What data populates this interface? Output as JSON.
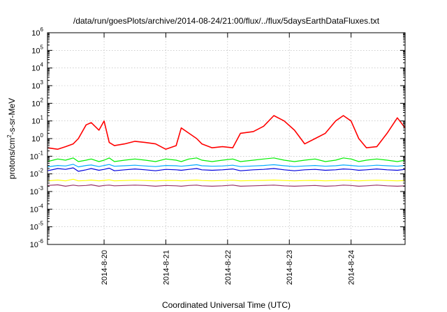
{
  "chart_data": {
    "type": "line",
    "title": "/data/run/goesPlots/archive/2014-08-24/21:00/flux/../flux/5daysEarthDataFluxes.txt",
    "xlabel": "Coordinated Universal Time (UTC)",
    "ylabel": {
      "prefix": "protons/cm",
      "superscript": "2",
      "suffix": "-s-sr-MeV"
    },
    "yscale": "log",
    "ylim": [
      1e-06,
      1000000.0
    ],
    "xlim": [
      "2014-08-19T02:00",
      "2014-08-24T21:00"
    ],
    "grid": true,
    "x_ticks": [
      {
        "label": "2014-8-20",
        "value": "2014-08-20T00:00"
      },
      {
        "label": "2014-8-21",
        "value": "2014-08-21T00:00"
      },
      {
        "label": "2014-8-22",
        "value": "2014-08-22T00:00"
      },
      {
        "label": "2014-8-23",
        "value": "2014-08-23T00:00"
      },
      {
        "label": "2014-8-24",
        "value": "2014-08-24T00:00"
      }
    ],
    "y_ticks": [
      {
        "base": "10",
        "exp": "-6"
      },
      {
        "base": "10",
        "exp": "-5"
      },
      {
        "base": "10",
        "exp": "-4"
      },
      {
        "base": "10",
        "exp": "-3"
      },
      {
        "base": "10",
        "exp": "-2"
      },
      {
        "base": "10",
        "exp": "-1"
      },
      {
        "base": "10",
        "exp": "0"
      },
      {
        "base": "10",
        "exp": "1"
      },
      {
        "base": "10",
        "exp": "2"
      },
      {
        "base": "10",
        "exp": "3"
      },
      {
        "base": "10",
        "exp": "4"
      },
      {
        "base": "10",
        "exp": "5"
      },
      {
        "base": "10",
        "exp": "6"
      }
    ],
    "series": [
      {
        "color": "#ff0000",
        "x": [
          "2014-08-19T02:00",
          "2014-08-19T06:00",
          "2014-08-19T09:00",
          "2014-08-19T12:00",
          "2014-08-19T14:00",
          "2014-08-19T17:00",
          "2014-08-19T19:00",
          "2014-08-19T22:00",
          "2014-08-20T00:00",
          "2014-08-20T02:00",
          "2014-08-20T04:00",
          "2014-08-20T08:00",
          "2014-08-20T12:00",
          "2014-08-20T16:00",
          "2014-08-20T20:00",
          "2014-08-21T00:00",
          "2014-08-21T04:00",
          "2014-08-21T06:00",
          "2014-08-21T09:00",
          "2014-08-21T12:00",
          "2014-08-21T14:00",
          "2014-08-21T18:00",
          "2014-08-21T22:00",
          "2014-08-22T02:00",
          "2014-08-22T05:00",
          "2014-08-22T10:00",
          "2014-08-22T14:00",
          "2014-08-22T18:00",
          "2014-08-22T22:00",
          "2014-08-23T02:00",
          "2014-08-23T06:00",
          "2014-08-23T10:00",
          "2014-08-23T14:00",
          "2014-08-23T18:00",
          "2014-08-23T21:00",
          "2014-08-24T00:00",
          "2014-08-24T03:00",
          "2014-08-24T06:00",
          "2014-08-24T10:00",
          "2014-08-24T14:00",
          "2014-08-24T18:00",
          "2014-08-24T21:00"
        ],
        "values": [
          0.3,
          0.25,
          0.35,
          0.5,
          1.0,
          6.0,
          8.0,
          3.0,
          10.0,
          0.6,
          0.4,
          0.5,
          0.7,
          0.6,
          0.5,
          0.25,
          0.4,
          4.0,
          2.0,
          1.0,
          0.5,
          0.3,
          0.35,
          0.3,
          2.0,
          2.5,
          5.0,
          20.0,
          10.0,
          3.0,
          0.5,
          1.0,
          2.0,
          10.0,
          20.0,
          10.0,
          1.0,
          0.3,
          0.35,
          2.0,
          15.0,
          4.0
        ]
      },
      {
        "color": "#00ee00",
        "values": [
          0.05,
          0.07,
          0.06,
          0.08,
          0.05,
          0.06,
          0.07,
          0.05,
          0.06,
          0.08,
          0.05,
          0.06,
          0.07,
          0.06,
          0.05,
          0.07,
          0.06,
          0.05,
          0.07,
          0.08,
          0.06,
          0.05,
          0.06,
          0.07,
          0.05,
          0.06,
          0.07,
          0.08,
          0.06,
          0.05,
          0.06,
          0.07,
          0.05,
          0.06,
          0.08,
          0.07,
          0.05,
          0.06,
          0.07,
          0.06,
          0.05,
          0.06
        ]
      },
      {
        "color": "#00aaff",
        "values": [
          0.025,
          0.03,
          0.028,
          0.035,
          0.025,
          0.03,
          0.032,
          0.026,
          0.03,
          0.034,
          0.027,
          0.029,
          0.031,
          0.028,
          0.026,
          0.03,
          0.029,
          0.027,
          0.03,
          0.033,
          0.029,
          0.027,
          0.028,
          0.031,
          0.026,
          0.028,
          0.03,
          0.033,
          0.029,
          0.026,
          0.028,
          0.03,
          0.027,
          0.029,
          0.032,
          0.03,
          0.027,
          0.028,
          0.031,
          0.029,
          0.027,
          0.03
        ]
      },
      {
        "color": "#0000dd",
        "values": [
          0.015,
          0.02,
          0.018,
          0.022,
          0.014,
          0.017,
          0.02,
          0.016,
          0.018,
          0.021,
          0.015,
          0.017,
          0.019,
          0.017,
          0.015,
          0.018,
          0.017,
          0.016,
          0.018,
          0.02,
          0.017,
          0.016,
          0.017,
          0.019,
          0.015,
          0.017,
          0.018,
          0.02,
          0.017,
          0.015,
          0.017,
          0.018,
          0.016,
          0.017,
          0.019,
          0.018,
          0.016,
          0.017,
          0.019,
          0.017,
          0.016,
          0.018
        ]
      },
      {
        "color": "#ffff00",
        "values": [
          0.004,
          0.0045,
          0.004,
          0.005,
          0.004,
          0.0042,
          0.0045,
          0.004,
          0.0043,
          0.0046,
          0.004,
          0.0042,
          0.0044,
          0.0042,
          0.004,
          0.0043,
          0.0042,
          0.004,
          0.0043,
          0.0045,
          0.0042,
          0.004,
          0.0042,
          0.0044,
          0.004,
          0.0042,
          0.0043,
          0.0045,
          0.0042,
          0.004,
          0.0042,
          0.0043,
          0.004,
          0.0042,
          0.0044,
          0.0043,
          0.004,
          0.0042,
          0.0044,
          0.0042,
          0.004,
          0.0042
        ]
      },
      {
        "color": "#993366",
        "values": [
          0.0022,
          0.0024,
          0.002,
          0.0023,
          0.0021,
          0.0022,
          0.0024,
          0.002,
          0.0022,
          0.0023,
          0.0021,
          0.0022,
          0.0023,
          0.0022,
          0.002,
          0.0022,
          0.0021,
          0.002,
          0.0022,
          0.0023,
          0.0021,
          0.002,
          0.0021,
          0.0023,
          0.002,
          0.0021,
          0.0022,
          0.0023,
          0.0021,
          0.002,
          0.0021,
          0.0022,
          0.002,
          0.0021,
          0.0023,
          0.0022,
          0.002,
          0.0021,
          0.0023,
          0.0021,
          0.002,
          0.0021
        ]
      }
    ]
  }
}
